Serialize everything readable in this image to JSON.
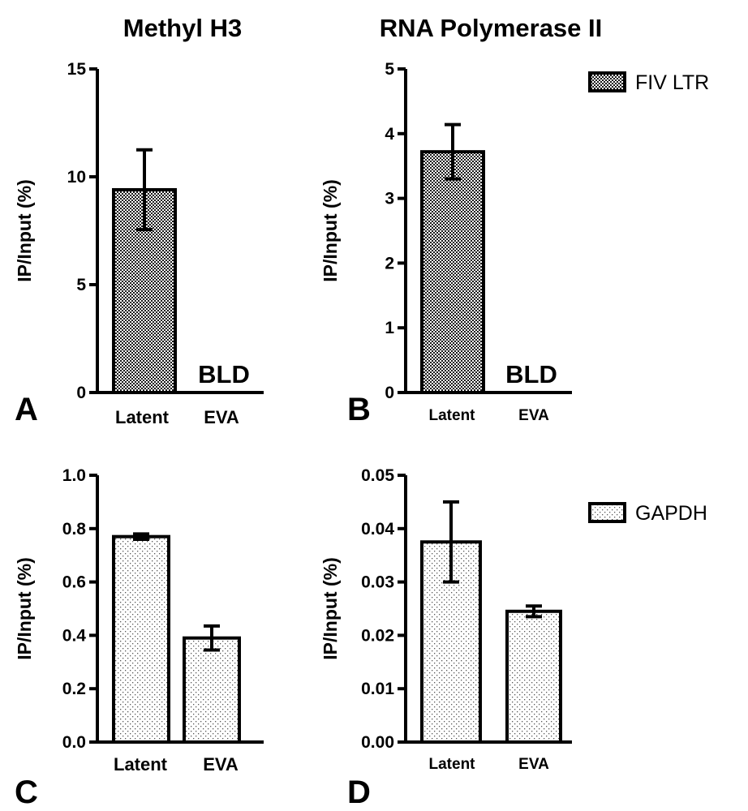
{
  "column_titles": {
    "left": "Methyl H3",
    "right": "RNA Polymerase II"
  },
  "legend": [
    {
      "label": "FIV LTR",
      "pattern": "checker"
    },
    {
      "label": "GAPDH",
      "pattern": "dots"
    }
  ],
  "colors": {
    "ink": "#000000",
    "background": "#ffffff"
  },
  "chart_data": [
    {
      "panel": "A",
      "type": "bar",
      "pattern": "checker",
      "ylabel": "IP/Input (%)",
      "ylim": [
        0,
        15
      ],
      "yticks": [
        0,
        5,
        10,
        15
      ],
      "tick_labels": [
        "0",
        "5",
        "10",
        "15"
      ],
      "categories": [
        "Latent",
        "EVA"
      ],
      "values": [
        9.4,
        null
      ],
      "errors": [
        1.85,
        null
      ],
      "annotations": [
        null,
        "BLD"
      ]
    },
    {
      "panel": "B",
      "type": "bar",
      "pattern": "checker",
      "ylabel": "IP/Input (%)",
      "ylim": [
        0,
        5
      ],
      "yticks": [
        0,
        1,
        2,
        3,
        4,
        5
      ],
      "tick_labels": [
        "0",
        "1",
        "2",
        "3",
        "4",
        "5"
      ],
      "categories": [
        "Latent",
        "EVA"
      ],
      "values": [
        3.72,
        null
      ],
      "errors": [
        0.42,
        null
      ],
      "annotations": [
        null,
        "BLD"
      ]
    },
    {
      "panel": "C",
      "type": "bar",
      "pattern": "dots",
      "ylabel": "IP/Input (%)",
      "ylim": [
        0,
        1.0
      ],
      "yticks": [
        0,
        0.2,
        0.4,
        0.6,
        0.8,
        1.0
      ],
      "tick_labels": [
        "0.0",
        "0.2",
        "0.4",
        "0.6",
        "0.8",
        "1.0"
      ],
      "categories": [
        "Latent",
        "EVA"
      ],
      "values": [
        0.77,
        0.39
      ],
      "errors": [
        0.01,
        0.045
      ],
      "annotations": [
        null,
        null
      ]
    },
    {
      "panel": "D",
      "type": "bar",
      "pattern": "dots",
      "ylabel": "IP/Input (%)",
      "ylim": [
        0,
        0.05
      ],
      "yticks": [
        0,
        0.01,
        0.02,
        0.03,
        0.04,
        0.05
      ],
      "tick_labels": [
        "0.00",
        "0.01",
        "0.02",
        "0.03",
        "0.04",
        "0.05"
      ],
      "categories": [
        "Latent",
        "EVA"
      ],
      "values": [
        0.0375,
        0.0245
      ],
      "errors": [
        0.0075,
        0.001
      ],
      "annotations": [
        null,
        null
      ]
    }
  ]
}
